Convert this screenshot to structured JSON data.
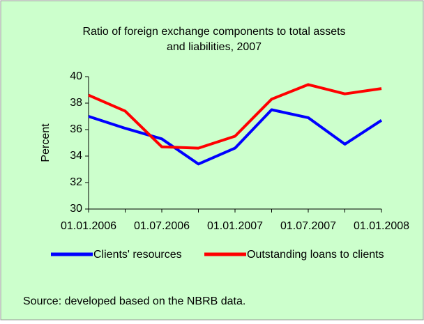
{
  "chart_data": {
    "type": "line",
    "title": [
      "Ratio of foreign exchange components to total assets",
      "and liabilities, 2007"
    ],
    "y_label": "Percent",
    "categories": [
      "01.01.2006",
      null,
      "01.07.2006",
      null,
      "01.01.2007",
      null,
      "01.07.2007",
      null,
      "01.01.2008"
    ],
    "series": [
      {
        "name": "Clients' resources",
        "color": "#0000ff",
        "values": [
          37.0,
          36.1,
          35.3,
          33.4,
          34.6,
          37.5,
          36.9,
          34.9,
          36.7
        ]
      },
      {
        "name": "Outstanding loans to clients",
        "color": "#ff0000",
        "values": [
          38.6,
          37.4,
          34.7,
          34.6,
          35.5,
          38.3,
          39.4,
          38.7,
          39.1
        ]
      }
    ],
    "ylim": [
      30,
      40
    ],
    "yticks": [
      30,
      32,
      34,
      36,
      38,
      40
    ],
    "note": "Source: developed based on the NBRB data."
  }
}
